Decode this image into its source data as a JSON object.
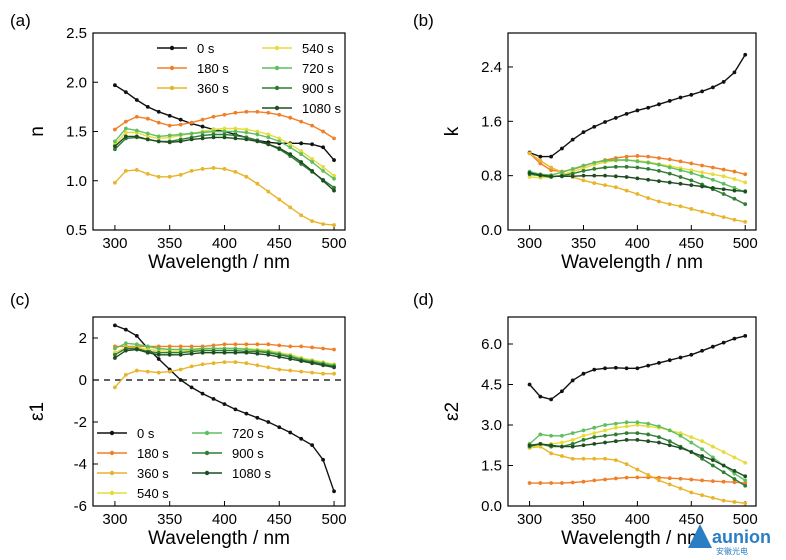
{
  "chart_data": [
    {
      "id": "a",
      "panel_label": "(a)",
      "type": "line",
      "xlabel": "Wavelength / nm",
      "ylabel": "n",
      "xlim": [
        280,
        510
      ],
      "ylim": [
        0.5,
        2.5
      ],
      "xticks": [
        300,
        350,
        400,
        450,
        500
      ],
      "yticks": [
        0.5,
        1.0,
        1.5,
        2.0,
        2.5
      ],
      "ytick_labels": [
        "0.5",
        "1.0",
        "1.5",
        "2.0",
        "2.5"
      ],
      "legend": "top",
      "x": [
        300,
        310,
        320,
        330,
        340,
        350,
        360,
        370,
        380,
        390,
        400,
        410,
        420,
        430,
        440,
        450,
        460,
        470,
        480,
        490,
        500
      ],
      "series": [
        {
          "name": "0 s",
          "color": "#111111",
          "values": [
            1.97,
            1.9,
            1.82,
            1.75,
            1.7,
            1.66,
            1.62,
            1.58,
            1.55,
            1.52,
            1.5,
            1.47,
            1.44,
            1.41,
            1.39,
            1.38,
            1.38,
            1.38,
            1.37,
            1.34,
            1.21
          ]
        },
        {
          "name": "180 s",
          "color": "#f07f27",
          "values": [
            1.52,
            1.6,
            1.65,
            1.63,
            1.59,
            1.56,
            1.57,
            1.59,
            1.62,
            1.65,
            1.67,
            1.69,
            1.7,
            1.7,
            1.69,
            1.67,
            1.64,
            1.6,
            1.56,
            1.5,
            1.43
          ]
        },
        {
          "name": "360 s",
          "color": "#e8b42a",
          "values": [
            0.98,
            1.1,
            1.11,
            1.07,
            1.04,
            1.04,
            1.06,
            1.1,
            1.12,
            1.13,
            1.12,
            1.09,
            1.04,
            0.97,
            0.89,
            0.81,
            0.73,
            0.65,
            0.59,
            0.56,
            0.55
          ]
        },
        {
          "name": "540 s",
          "color": "#e6dc3a",
          "values": [
            1.37,
            1.49,
            1.49,
            1.45,
            1.43,
            1.44,
            1.46,
            1.48,
            1.5,
            1.52,
            1.53,
            1.53,
            1.52,
            1.5,
            1.47,
            1.43,
            1.37,
            1.3,
            1.22,
            1.14,
            1.05
          ]
        },
        {
          "name": "720 s",
          "color": "#5fbf5f",
          "values": [
            1.4,
            1.53,
            1.51,
            1.48,
            1.45,
            1.46,
            1.47,
            1.48,
            1.49,
            1.5,
            1.5,
            1.5,
            1.49,
            1.47,
            1.44,
            1.4,
            1.34,
            1.27,
            1.19,
            1.1,
            1.02
          ]
        },
        {
          "name": "900 s",
          "color": "#2f7d32",
          "values": [
            1.32,
            1.43,
            1.44,
            1.42,
            1.4,
            1.4,
            1.42,
            1.44,
            1.46,
            1.47,
            1.47,
            1.46,
            1.44,
            1.41,
            1.37,
            1.32,
            1.25,
            1.17,
            1.09,
            1.01,
            0.93
          ]
        },
        {
          "name": "1080 s",
          "color": "#1e4d22",
          "values": [
            1.35,
            1.45,
            1.45,
            1.42,
            1.4,
            1.39,
            1.4,
            1.42,
            1.43,
            1.44,
            1.44,
            1.43,
            1.42,
            1.4,
            1.37,
            1.33,
            1.27,
            1.19,
            1.1,
            1.0,
            0.9
          ]
        }
      ]
    },
    {
      "id": "b",
      "panel_label": "(b)",
      "type": "line",
      "xlabel": "Wavelength / nm",
      "ylabel": "k",
      "xlim": [
        280,
        510
      ],
      "ylim": [
        0.0,
        2.9
      ],
      "xticks": [
        300,
        350,
        400,
        450,
        500
      ],
      "yticks": [
        0.0,
        0.8,
        1.6,
        2.4
      ],
      "ytick_labels": [
        "0.0",
        "0.8",
        "1.6",
        "2.4"
      ],
      "x": [
        300,
        310,
        320,
        330,
        340,
        350,
        360,
        370,
        380,
        390,
        400,
        410,
        420,
        430,
        440,
        450,
        460,
        470,
        480,
        490,
        500
      ],
      "series": [
        {
          "name": "0 s",
          "color": "#111111",
          "values": [
            1.14,
            1.08,
            1.08,
            1.2,
            1.33,
            1.44,
            1.52,
            1.59,
            1.65,
            1.71,
            1.76,
            1.8,
            1.85,
            1.9,
            1.95,
            1.99,
            2.04,
            2.1,
            2.18,
            2.32,
            2.58
          ]
        },
        {
          "name": "180 s",
          "color": "#f07f27",
          "values": [
            1.13,
            0.98,
            0.88,
            0.86,
            0.89,
            0.94,
            0.99,
            1.03,
            1.06,
            1.08,
            1.09,
            1.08,
            1.06,
            1.04,
            1.01,
            0.98,
            0.95,
            0.92,
            0.89,
            0.86,
            0.82
          ]
        },
        {
          "name": "360 s",
          "color": "#e8b42a",
          "values": [
            1.13,
            1.02,
            0.92,
            0.85,
            0.78,
            0.73,
            0.69,
            0.66,
            0.63,
            0.58,
            0.53,
            0.47,
            0.42,
            0.38,
            0.35,
            0.31,
            0.27,
            0.23,
            0.19,
            0.15,
            0.12
          ]
        },
        {
          "name": "540 s",
          "color": "#e6dc3a",
          "values": [
            0.78,
            0.77,
            0.78,
            0.81,
            0.86,
            0.91,
            0.96,
            1.0,
            1.02,
            1.03,
            1.02,
            1.0,
            0.97,
            0.94,
            0.91,
            0.88,
            0.85,
            0.82,
            0.79,
            0.75,
            0.7
          ]
        },
        {
          "name": "720 s",
          "color": "#5fbf5f",
          "values": [
            0.86,
            0.82,
            0.81,
            0.85,
            0.9,
            0.95,
            0.99,
            1.02,
            1.03,
            1.03,
            1.01,
            0.99,
            0.96,
            0.92,
            0.88,
            0.84,
            0.79,
            0.74,
            0.68,
            0.62,
            0.56
          ]
        },
        {
          "name": "900 s",
          "color": "#2f7d32",
          "values": [
            0.82,
            0.8,
            0.78,
            0.8,
            0.83,
            0.87,
            0.9,
            0.92,
            0.93,
            0.93,
            0.92,
            0.9,
            0.87,
            0.83,
            0.78,
            0.73,
            0.67,
            0.6,
            0.53,
            0.46,
            0.38
          ]
        },
        {
          "name": "1080 s",
          "color": "#1e4d22",
          "values": [
            0.84,
            0.81,
            0.79,
            0.79,
            0.79,
            0.8,
            0.8,
            0.8,
            0.79,
            0.78,
            0.76,
            0.74,
            0.72,
            0.7,
            0.68,
            0.66,
            0.64,
            0.62,
            0.6,
            0.58,
            0.57
          ]
        }
      ]
    },
    {
      "id": "c",
      "panel_label": "(c)",
      "type": "line",
      "xlabel": "Wavelength / nm",
      "ylabel": "ε1",
      "xlim": [
        280,
        510
      ],
      "ylim": [
        -6,
        3
      ],
      "xticks": [
        300,
        350,
        400,
        450,
        500
      ],
      "yticks": [
        -6,
        -4,
        -2,
        0,
        2
      ],
      "ytick_labels": [
        "-6",
        "-4",
        "-2",
        "0",
        "2"
      ],
      "zero_line": 0,
      "legend": "lower-left",
      "x": [
        300,
        310,
        320,
        330,
        340,
        350,
        360,
        370,
        380,
        390,
        400,
        410,
        420,
        430,
        440,
        450,
        460,
        470,
        480,
        490,
        500
      ],
      "series": [
        {
          "name": "0 s",
          "color": "#111111",
          "values": [
            2.6,
            2.4,
            2.1,
            1.5,
            1.0,
            0.5,
            0.0,
            -0.35,
            -0.65,
            -0.9,
            -1.15,
            -1.4,
            -1.6,
            -1.8,
            -2.0,
            -2.25,
            -2.5,
            -2.8,
            -3.1,
            -3.8,
            -5.3
          ]
        },
        {
          "name": "180 s",
          "color": "#f07f27",
          "values": [
            1.6,
            1.6,
            1.6,
            1.6,
            1.6,
            1.6,
            1.6,
            1.6,
            1.6,
            1.65,
            1.7,
            1.7,
            1.7,
            1.7,
            1.7,
            1.65,
            1.6,
            1.6,
            1.55,
            1.5,
            1.45
          ]
        },
        {
          "name": "360 s",
          "color": "#e8b42a",
          "values": [
            -0.35,
            0.25,
            0.45,
            0.4,
            0.35,
            0.4,
            0.5,
            0.65,
            0.75,
            0.8,
            0.85,
            0.85,
            0.8,
            0.7,
            0.6,
            0.5,
            0.45,
            0.4,
            0.35,
            0.3,
            0.3
          ]
        },
        {
          "name": "540 s",
          "color": "#e6dc3a",
          "values": [
            1.3,
            1.55,
            1.55,
            1.45,
            1.4,
            1.35,
            1.35,
            1.4,
            1.45,
            1.5,
            1.5,
            1.5,
            1.5,
            1.45,
            1.4,
            1.3,
            1.2,
            1.05,
            0.95,
            0.85,
            0.75
          ]
        },
        {
          "name": "720 s",
          "color": "#5fbf5f",
          "values": [
            1.5,
            1.75,
            1.7,
            1.6,
            1.5,
            1.45,
            1.45,
            1.45,
            1.5,
            1.5,
            1.5,
            1.5,
            1.45,
            1.4,
            1.35,
            1.25,
            1.15,
            1.0,
            0.9,
            0.8,
            0.7
          ]
        },
        {
          "name": "900 s",
          "color": "#2f7d32",
          "values": [
            1.2,
            1.5,
            1.5,
            1.35,
            1.3,
            1.3,
            1.3,
            1.35,
            1.4,
            1.4,
            1.4,
            1.4,
            1.35,
            1.35,
            1.3,
            1.2,
            1.1,
            0.95,
            0.85,
            0.75,
            0.65
          ]
        },
        {
          "name": "1080 s",
          "color": "#1e4d22",
          "values": [
            1.05,
            1.4,
            1.45,
            1.3,
            1.2,
            1.2,
            1.2,
            1.25,
            1.3,
            1.3,
            1.3,
            1.3,
            1.3,
            1.25,
            1.2,
            1.1,
            1.0,
            0.9,
            0.8,
            0.7,
            0.6
          ]
        }
      ]
    },
    {
      "id": "d",
      "panel_label": "(d)",
      "type": "line",
      "xlabel": "Wavelength / nm",
      "ylabel": "ε2",
      "xlim": [
        280,
        510
      ],
      "ylim": [
        0.0,
        7.0
      ],
      "xticks": [
        300,
        350,
        400,
        450,
        500
      ],
      "yticks": [
        0.0,
        1.5,
        3.0,
        4.5,
        6.0
      ],
      "ytick_labels": [
        "0.0",
        "1.5",
        "3.0",
        "4.5",
        "6.0"
      ],
      "x": [
        300,
        310,
        320,
        330,
        340,
        350,
        360,
        370,
        380,
        390,
        400,
        410,
        420,
        430,
        440,
        450,
        460,
        470,
        480,
        490,
        500
      ],
      "series": [
        {
          "name": "0 s",
          "color": "#111111",
          "values": [
            4.5,
            4.05,
            3.95,
            4.25,
            4.65,
            4.9,
            5.05,
            5.1,
            5.12,
            5.1,
            5.1,
            5.2,
            5.3,
            5.4,
            5.5,
            5.6,
            5.75,
            5.9,
            6.05,
            6.2,
            6.3
          ]
        },
        {
          "name": "180 s",
          "color": "#f07f27",
          "values": [
            0.85,
            0.85,
            0.85,
            0.85,
            0.87,
            0.9,
            0.95,
            0.98,
            1.02,
            1.05,
            1.06,
            1.06,
            1.05,
            1.03,
            1.01,
            0.98,
            0.95,
            0.92,
            0.9,
            0.88,
            0.85
          ]
        },
        {
          "name": "360 s",
          "color": "#e8b42a",
          "values": [
            2.15,
            2.2,
            1.95,
            1.85,
            1.75,
            1.75,
            1.75,
            1.75,
            1.7,
            1.55,
            1.35,
            1.15,
            0.95,
            0.8,
            0.65,
            0.5,
            0.4,
            0.3,
            0.2,
            0.15,
            0.1
          ]
        },
        {
          "name": "540 s",
          "color": "#e6dc3a",
          "values": [
            2.15,
            2.25,
            2.3,
            2.35,
            2.45,
            2.6,
            2.7,
            2.8,
            2.9,
            2.95,
            3.0,
            2.95,
            2.9,
            2.8,
            2.7,
            2.55,
            2.4,
            2.2,
            2.0,
            1.8,
            1.6
          ]
        },
        {
          "name": "720 s",
          "color": "#5fbf5f",
          "values": [
            2.3,
            2.65,
            2.6,
            2.6,
            2.7,
            2.8,
            2.9,
            3.0,
            3.05,
            3.1,
            3.1,
            3.05,
            2.95,
            2.8,
            2.6,
            2.35,
            2.1,
            1.8,
            1.5,
            1.2,
            0.95
          ]
        },
        {
          "name": "900 s",
          "color": "#2f7d32",
          "values": [
            2.2,
            2.3,
            2.2,
            2.2,
            2.3,
            2.45,
            2.55,
            2.6,
            2.65,
            2.7,
            2.7,
            2.65,
            2.55,
            2.4,
            2.2,
            2.0,
            1.75,
            1.5,
            1.25,
            1.0,
            0.75
          ]
        },
        {
          "name": "1080 s",
          "color": "#1e4d22",
          "values": [
            2.25,
            2.3,
            2.25,
            2.2,
            2.2,
            2.25,
            2.3,
            2.35,
            2.4,
            2.45,
            2.45,
            2.4,
            2.35,
            2.25,
            2.15,
            2.0,
            1.85,
            1.7,
            1.5,
            1.3,
            1.1
          ]
        }
      ]
    }
  ],
  "watermark": {
    "brand": "aunion",
    "sub": "安徽光电"
  }
}
